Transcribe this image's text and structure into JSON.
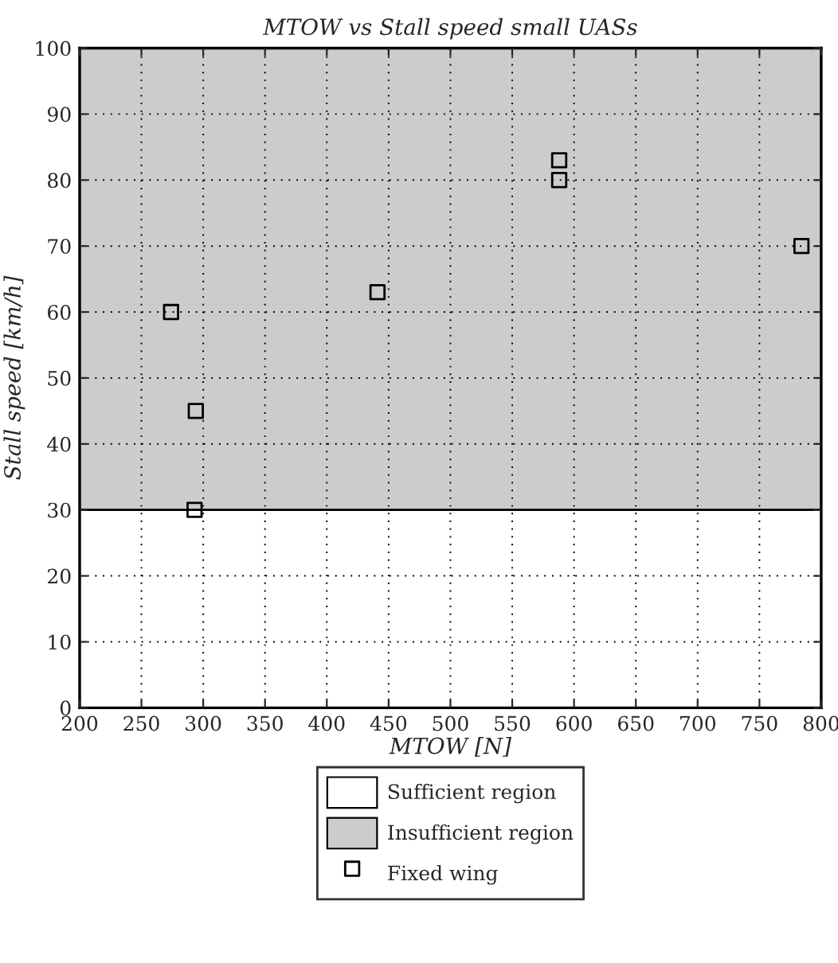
{
  "chart_data": {
    "type": "scatter",
    "title": "MTOW vs Stall speed small UASs",
    "xlabel": "MTOW [N]",
    "ylabel": "Stall speed [km/h]",
    "x": [
      274,
      294,
      293,
      441,
      588,
      588,
      784
    ],
    "series": [
      {
        "name": "Fixed wing",
        "color": "#000000",
        "values": [
          60,
          45,
          30,
          63,
          83,
          80,
          70
        ]
      }
    ],
    "bands": [
      {
        "axis": "y",
        "from": 0,
        "to": 30,
        "label": "Sufficient region",
        "color": "#ffffff"
      },
      {
        "axis": "y",
        "from": 30,
        "to": 100,
        "label": "Insufficient region",
        "color": "#cccccc"
      }
    ],
    "xlim": [
      200,
      800
    ],
    "xticks": [
      200,
      250,
      300,
      350,
      400,
      450,
      500,
      550,
      600,
      650,
      700,
      750,
      800
    ],
    "ylim": [
      0,
      100
    ],
    "yticks": [
      0,
      10,
      20,
      30,
      40,
      50,
      60,
      70,
      80,
      90,
      100
    ],
    "grid": true,
    "legend": "bottom",
    "marker": "square"
  }
}
